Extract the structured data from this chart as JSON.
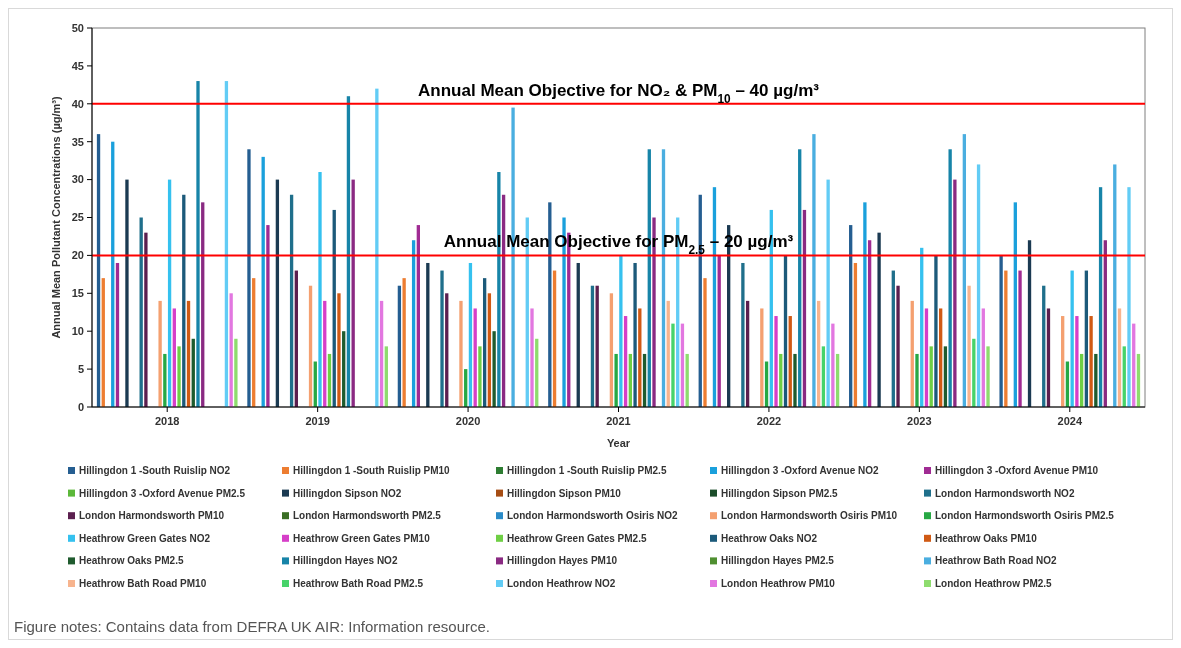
{
  "chart_data": {
    "type": "bar",
    "xlabel": "Year",
    "ylabel": "Annual Mean Pollutant Concentrations (µg/m³)",
    "categories": [
      "2018",
      "2019",
      "2020",
      "2021",
      "2022",
      "2023",
      "2024"
    ],
    "ylim": [
      0,
      50
    ],
    "yticks": [
      0,
      5,
      10,
      15,
      20,
      25,
      30,
      35,
      40,
      45,
      50
    ],
    "grid": false,
    "legend": "bottom",
    "ref_lines": [
      {
        "axis": "y",
        "value": 40,
        "label": "Annual Mean Objective for NO₂ & PM$_{10}$ – 40 µg/m³",
        "color": "#ff0000"
      },
      {
        "axis": "y",
        "value": 20,
        "label": "Annual Mean Objective for PM$_{2.5}$ – 20 µg/m³",
        "color": "#ff0000"
      }
    ],
    "annotations": [
      "Figure notes: Contains data from DEFRA UK AIR: Information resource."
    ],
    "series": [
      {
        "name": "Hillingdon 1 -South Ruislip NO2",
        "color": "#255e91",
        "values": [
          36,
          34,
          16,
          27,
          28,
          24,
          20
        ]
      },
      {
        "name": "Hillingdon 1 -South Ruislip PM10",
        "color": "#ed7d31",
        "values": [
          17,
          17,
          17,
          18,
          17,
          19,
          18
        ]
      },
      {
        "name": "Hillingdon 1 -South Ruislip PM2.5",
        "color": "#2e7d32",
        "values": [
          null,
          null,
          null,
          null,
          null,
          null,
          null
        ]
      },
      {
        "name": "Hillingdon 3 -Oxford Avenue NO2",
        "color": "#1aa0dc",
        "values": [
          35,
          33,
          22,
          25,
          29,
          27,
          27
        ]
      },
      {
        "name": "Hillingdon 3 -Oxford Avenue PM10",
        "color": "#a02b93",
        "values": [
          19,
          24,
          24,
          23,
          20,
          22,
          18
        ]
      },
      {
        "name": "Hillingdon 3 -Oxford Avenue PM2.5",
        "color": "#5cb83a",
        "values": [
          null,
          null,
          null,
          null,
          null,
          null,
          null
        ]
      },
      {
        "name": "Hillingdon Sipson NO2",
        "color": "#1b3a52",
        "values": [
          30,
          30,
          19,
          19,
          24,
          23,
          22
        ]
      },
      {
        "name": "Hillingdon Sipson PM10",
        "color": "#a64d14",
        "values": [
          null,
          null,
          null,
          null,
          null,
          null,
          null
        ]
      },
      {
        "name": "Hillingdon Sipson PM2.5",
        "color": "#1b4d2a",
        "values": [
          null,
          null,
          null,
          null,
          null,
          null,
          null
        ]
      },
      {
        "name": "London Harmondsworth NO2",
        "color": "#1f6f8b",
        "values": [
          25,
          28,
          18,
          16,
          19,
          18,
          16
        ]
      },
      {
        "name": "London Harmondsworth PM10",
        "color": "#5b1f4f",
        "values": [
          23,
          18,
          15,
          16,
          14,
          16,
          13
        ]
      },
      {
        "name": "London Harmondsworth PM2.5",
        "color": "#3a6e24",
        "values": [
          null,
          null,
          null,
          null,
          null,
          null,
          null
        ]
      },
      {
        "name": "London Harmondsworth Osiris NO2",
        "color": "#2a8bc8",
        "values": [
          null,
          null,
          null,
          null,
          null,
          null,
          null
        ]
      },
      {
        "name": "London Harmondsworth Osiris PM10",
        "color": "#f4a070",
        "values": [
          14,
          16,
          14,
          15,
          13,
          14,
          12
        ]
      },
      {
        "name": "London Harmondsworth Osiris PM2.5",
        "color": "#27a844",
        "values": [
          7,
          6,
          5,
          7,
          6,
          7,
          6
        ]
      },
      {
        "name": "Heathrow Green Gates NO2",
        "color": "#35c1ef",
        "values": [
          30,
          31,
          19,
          20,
          26,
          21,
          18
        ]
      },
      {
        "name": "Heathrow Green Gates PM10",
        "color": "#d63fc8",
        "values": [
          13,
          14,
          13,
          12,
          12,
          13,
          12
        ]
      },
      {
        "name": "Heathrow Green Gates PM2.5",
        "color": "#6fcf45",
        "values": [
          8,
          7,
          8,
          7,
          7,
          8,
          7
        ]
      },
      {
        "name": "Heathrow Oaks NO2",
        "color": "#1c5a7a",
        "values": [
          28,
          26,
          17,
          19,
          20,
          20,
          18
        ]
      },
      {
        "name": "Heathrow Oaks PM10",
        "color": "#d05a14",
        "values": [
          14,
          15,
          15,
          13,
          12,
          13,
          12
        ]
      },
      {
        "name": "Heathrow Oaks PM2.5",
        "color": "#1f5b2e",
        "values": [
          9,
          10,
          10,
          7,
          7,
          8,
          7
        ]
      },
      {
        "name": "Hillingdon Hayes NO2",
        "color": "#1784a8",
        "values": [
          43,
          41,
          31,
          34,
          34,
          34,
          29
        ]
      },
      {
        "name": "Hillingdon Hayes PM10",
        "color": "#8a2a82",
        "values": [
          27,
          30,
          28,
          25,
          26,
          30,
          22
        ]
      },
      {
        "name": "Hillingdon Hayes PM2.5",
        "color": "#4f8f30",
        "values": [
          null,
          null,
          null,
          null,
          null,
          null,
          null
        ]
      },
      {
        "name": "Heathrow Bath Road NO2",
        "color": "#4aaee0",
        "values": [
          null,
          null,
          39.5,
          34,
          36,
          36,
          32
        ]
      },
      {
        "name": "Heathrow Bath Road PM10",
        "color": "#f7b48e",
        "values": [
          null,
          null,
          null,
          14,
          14,
          16,
          13
        ]
      },
      {
        "name": "Heathrow Bath Road PM2.5",
        "color": "#47d36a",
        "values": [
          null,
          null,
          null,
          11,
          8,
          9,
          8
        ]
      },
      {
        "name": "London Heathrow NO2",
        "color": "#62ccf5",
        "values": [
          43,
          42,
          25,
          25,
          30,
          32,
          29
        ]
      },
      {
        "name": "London Heathrow PM10",
        "color": "#e277e0",
        "values": [
          15,
          14,
          13,
          11,
          11,
          13,
          11
        ]
      },
      {
        "name": "London Heathrow PM2.5",
        "color": "#8edc6e",
        "values": [
          9,
          8,
          9,
          7,
          7,
          8,
          7
        ]
      }
    ]
  }
}
